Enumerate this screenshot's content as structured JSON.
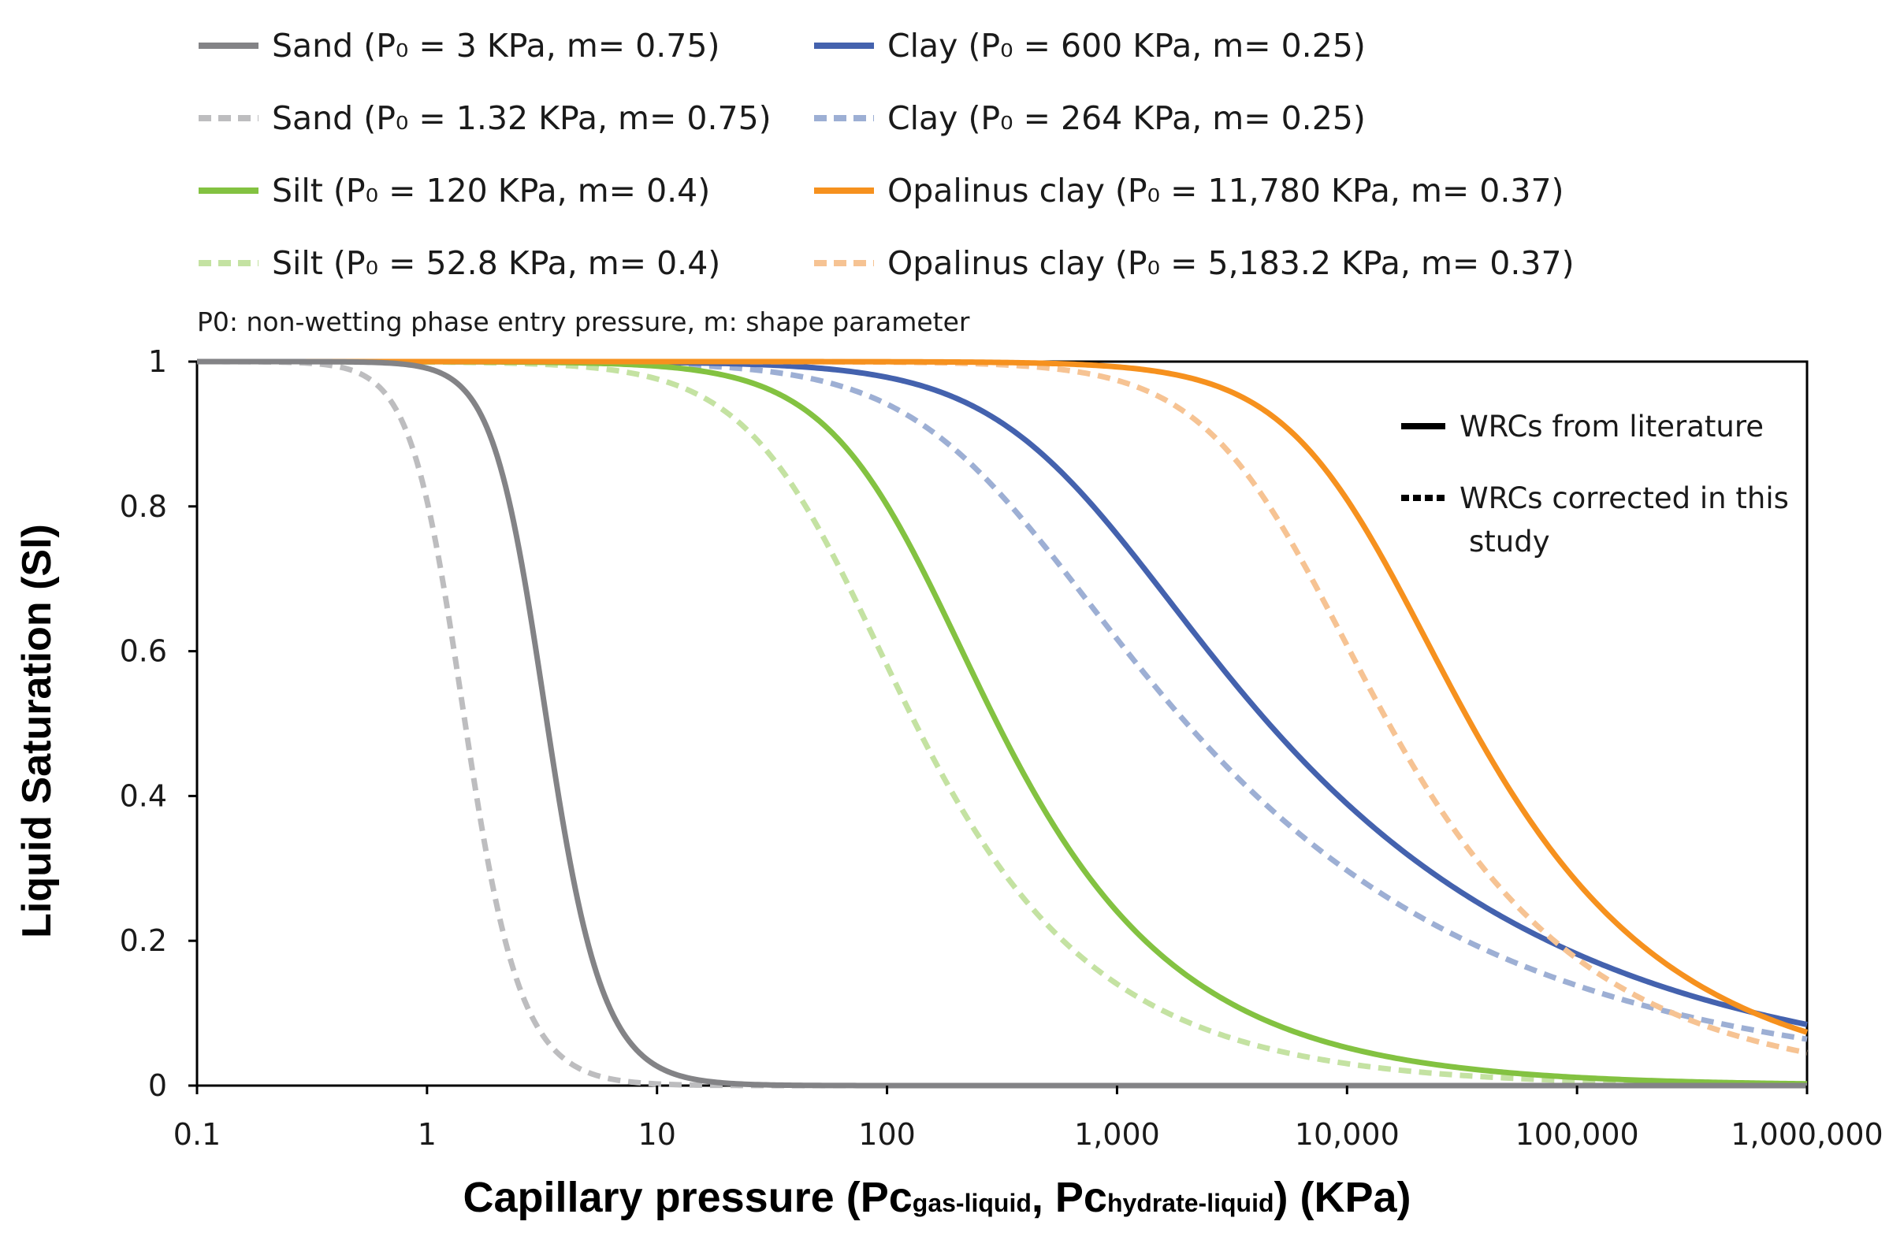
{
  "chart_data": {
    "type": "line",
    "xscale": "log",
    "xlim": [
      0.1,
      1000000
    ],
    "ylim": [
      0,
      1
    ],
    "grid": false,
    "ylabel": "Liquid Saturation (Sl)",
    "xlabel": {
      "main": "Capillary pressure (Pc",
      "sub1": "gas-liquid",
      "sep": ", Pc",
      "sub2": "hydrate-liquid",
      "tail": ") (KPa)"
    },
    "x_ticks": [
      {
        "value": 0.1,
        "label": "0.1"
      },
      {
        "value": 1,
        "label": "1"
      },
      {
        "value": 10,
        "label": "10"
      },
      {
        "value": 100,
        "label": "100"
      },
      {
        "value": 1000,
        "label": "1,000"
      },
      {
        "value": 10000,
        "label": "10,000"
      },
      {
        "value": 100000,
        "label": "100,000"
      },
      {
        "value": 1000000,
        "label": "1,000,000"
      }
    ],
    "y_ticks": [
      {
        "value": 0,
        "label": "0"
      },
      {
        "value": 0.2,
        "label": "0.2"
      },
      {
        "value": 0.4,
        "label": "0.4"
      },
      {
        "value": 0.6,
        "label": "0.6"
      },
      {
        "value": 0.8,
        "label": "0.8"
      },
      {
        "value": 1,
        "label": "1"
      }
    ],
    "note": "P0: non-wetting phase entry pressure,  m: shape parameter",
    "inset_legend": [
      {
        "label": "WRCs from literature",
        "dashed": false
      },
      {
        "label": "WRCs corrected in this",
        "label2": "study",
        "dashed": true
      }
    ],
    "series": [
      {
        "name": "Sand (P₀ = 3 KPa, m= 0.75)",
        "material": "Sand",
        "P0": 3,
        "m": 0.75,
        "color": "#838386",
        "dashed": false
      },
      {
        "name": "Sand (P₀ = 1.32 KPa, m= 0.75)",
        "material": "Sand",
        "P0": 1.32,
        "m": 0.75,
        "color": "#bdbdbf",
        "dashed": true
      },
      {
        "name": "Silt (P₀ = 120 KPa, m= 0.4)",
        "material": "Silt",
        "P0": 120,
        "m": 0.4,
        "color": "#83c241",
        "dashed": false
      },
      {
        "name": "Silt (P₀ = 52.8 KPa, m= 0.4)",
        "material": "Silt",
        "P0": 52.8,
        "m": 0.4,
        "color": "#c4e2a2",
        "dashed": true
      },
      {
        "name": "Clay (P₀ = 600 KPa, m= 0.25)",
        "material": "Clay",
        "P0": 600,
        "m": 0.25,
        "color": "#4462ae",
        "dashed": false
      },
      {
        "name": "Clay (P₀ = 264 KPa, m= 0.25)",
        "material": "Clay",
        "P0": 264,
        "m": 0.25,
        "color": "#9dafd4",
        "dashed": true
      },
      {
        "name": "Opalinus clay (P₀ = 11,780 KPa, m= 0.37)",
        "material": "Opalinus clay",
        "P0": 11780,
        "m": 0.37,
        "color": "#f6911e",
        "dashed": false
      },
      {
        "name": "Opalinus clay (P₀ = 5,183.2 KPa, m= 0.37)",
        "material": "Opalinus clay",
        "P0": 5183.2,
        "m": 0.37,
        "color": "#f6c393",
        "dashed": true
      }
    ]
  }
}
